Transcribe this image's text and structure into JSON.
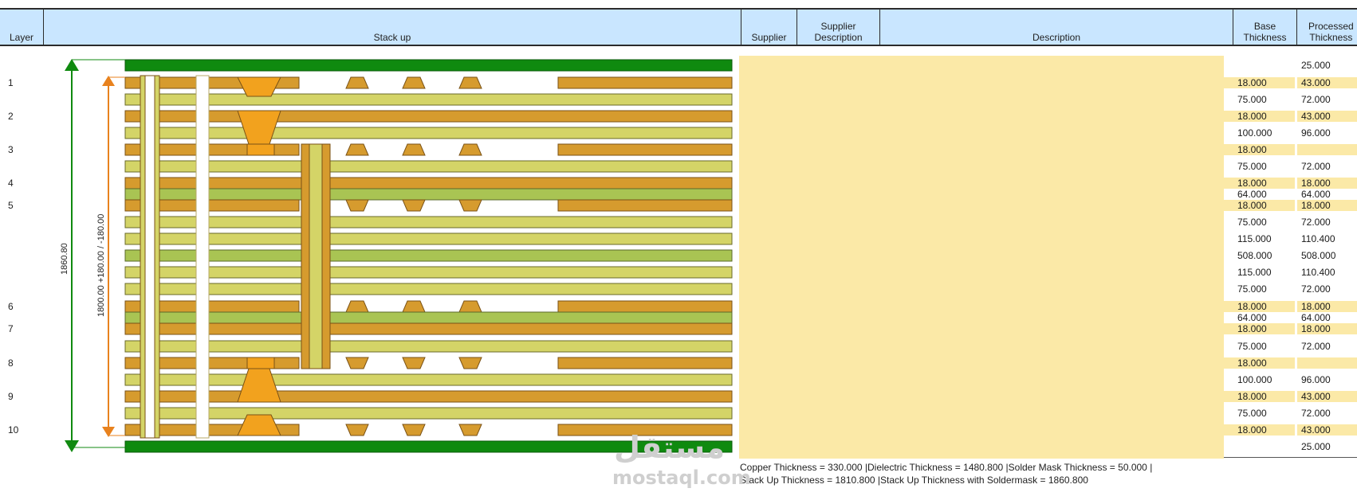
{
  "header": {
    "layer": "Layer",
    "stackup": "Stack up",
    "supplier": "Supplier",
    "supplier_description": "Supplier\nDescription",
    "description": "Description",
    "base_thickness": "Base\nThickness",
    "processed_thickness": "Processed\nThickness"
  },
  "layers": [
    "1",
    "2",
    "3",
    "4",
    "5",
    "6",
    "7",
    "8",
    "9",
    "10"
  ],
  "dimensions": {
    "overall": "1860.80",
    "inner": "1800.00 +180.00 / -180.00"
  },
  "thickness_rows": [
    {
      "base": "",
      "processed": "25.000",
      "hl": false
    },
    {
      "base": "18.000",
      "processed": "43.000",
      "hl": true
    },
    {
      "base": "75.000",
      "processed": "72.000",
      "hl": false
    },
    {
      "base": "18.000",
      "processed": "43.000",
      "hl": true
    },
    {
      "base": "100.000",
      "processed": "96.000",
      "hl": false
    },
    {
      "base": "18.000",
      "processed": "",
      "hl": true
    },
    {
      "base": "75.000",
      "processed": "72.000",
      "hl": false
    },
    {
      "base": "18.000",
      "processed": "18.000",
      "hl": true
    },
    {
      "base": "64.000",
      "processed": "64.000",
      "hl": false
    },
    {
      "base": "18.000",
      "processed": "18.000",
      "hl": true
    },
    {
      "base": "75.000",
      "processed": "72.000",
      "hl": false
    },
    {
      "base": "115.000",
      "processed": "110.400",
      "hl": false
    },
    {
      "base": "508.000",
      "processed": "508.000",
      "hl": false
    },
    {
      "base": "115.000",
      "processed": "110.400",
      "hl": false
    },
    {
      "base": "75.000",
      "processed": "72.000",
      "hl": false
    },
    {
      "base": "18.000",
      "processed": "18.000",
      "hl": true
    },
    {
      "base": "64.000",
      "processed": "64.000",
      "hl": false
    },
    {
      "base": "18.000",
      "processed": "18.000",
      "hl": true
    },
    {
      "base": "75.000",
      "processed": "72.000",
      "hl": false
    },
    {
      "base": "18.000",
      "processed": "",
      "hl": true
    },
    {
      "base": "100.000",
      "processed": "96.000",
      "hl": false
    },
    {
      "base": "18.000",
      "processed": "43.000",
      "hl": true
    },
    {
      "base": "75.000",
      "processed": "72.000",
      "hl": false
    },
    {
      "base": "18.000",
      "processed": "43.000",
      "hl": true
    },
    {
      "base": "",
      "processed": "25.000",
      "hl": false
    }
  ],
  "footer": {
    "line1": "Copper Thickness = 330.000  |Dielectric Thickness = 1480.800  |Solder Mask Thickness = 50.000  |",
    "line2": "Stack Up Thickness = 1810.800  |Stack Up Thickness with Soldermask = 1860.800"
  },
  "watermark": {
    "arabic": "مستقل",
    "latin": "mostaql.com"
  },
  "colors": {
    "header_bg": "#c9e6ff",
    "solder_mask": "#0f8a0f",
    "copper": "#d69b2e",
    "prepreg": "#d4d467",
    "core": "#a9c453",
    "via": "#f2a21e",
    "panel": "#fbe9a7",
    "dim_orange": "#e8821e",
    "dim_green": "#108a10"
  }
}
